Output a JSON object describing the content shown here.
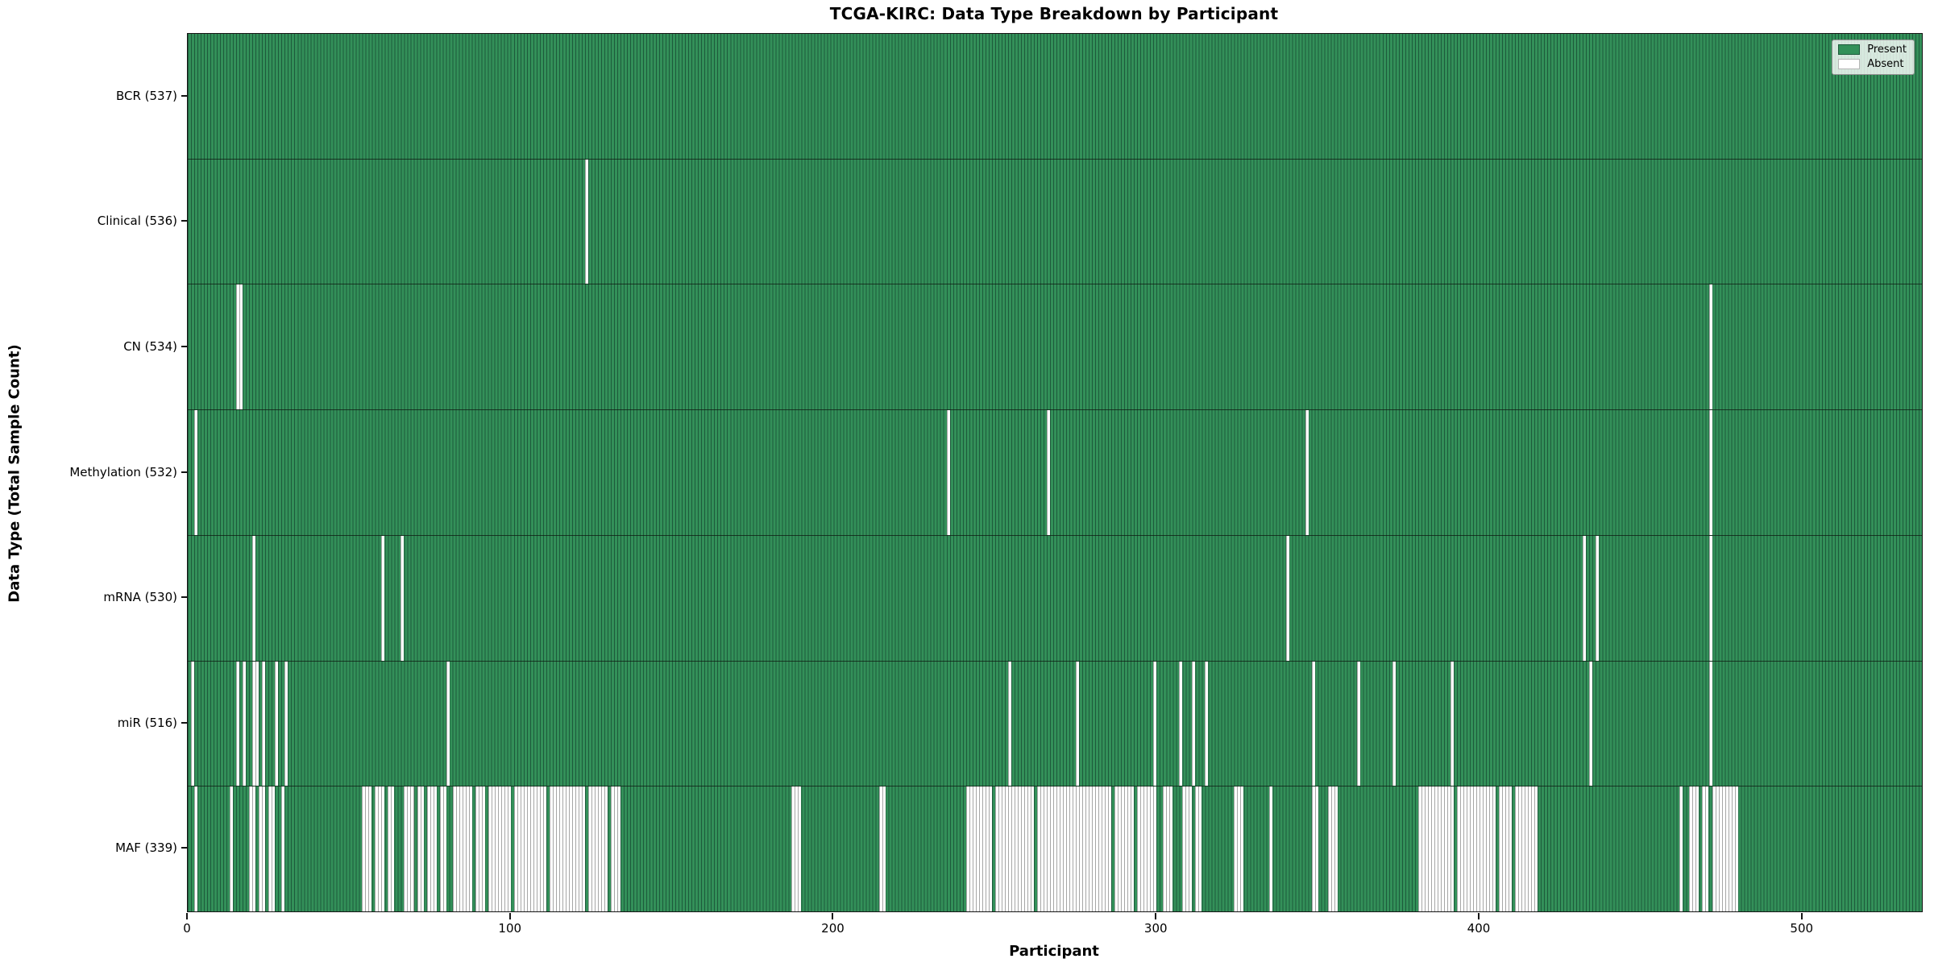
{
  "title": "TCGA-KIRC: Data Type Breakdown by Participant",
  "x_axis": {
    "label": "Participant",
    "ticks": [
      0,
      100,
      200,
      300,
      400,
      500
    ]
  },
  "y_axis": {
    "label": "Data Type (Total Sample Count)"
  },
  "legend": {
    "present_label": "Present",
    "absent_label": "Absent"
  },
  "colors": {
    "present_face": "#339059",
    "present_edge": "#1d5a3b",
    "absent_face": "#ffffff",
    "absent_edge": "#a6a6a6"
  },
  "chart_data": {
    "type": "heatmap",
    "subtype": "presence-absence-matrix",
    "x_range": [
      0,
      537
    ],
    "n_participants": 537,
    "legend_position": "upper right",
    "grid": false,
    "rows": [
      {
        "label": "BCR (537)",
        "data_type": "BCR",
        "present_count": 537,
        "absent_count": 0,
        "absent_ranges": []
      },
      {
        "label": "Clinical (536)",
        "data_type": "Clinical",
        "present_count": 536,
        "absent_count": 1,
        "absent_ranges": [
          [
            123,
            123
          ]
        ]
      },
      {
        "label": "CN (534)",
        "data_type": "CN",
        "present_count": 534,
        "absent_count": 3,
        "absent_ranges": [
          [
            15,
            16
          ],
          [
            471,
            471
          ]
        ]
      },
      {
        "label": "Methylation (532)",
        "data_type": "Methylation",
        "present_count": 532,
        "absent_count": 5,
        "absent_ranges": [
          [
            2,
            2
          ],
          [
            235,
            235
          ],
          [
            266,
            266
          ],
          [
            346,
            346
          ],
          [
            471,
            471
          ]
        ]
      },
      {
        "label": "mRNA (530)",
        "data_type": "mRNA",
        "present_count": 530,
        "absent_count": 7,
        "absent_ranges": [
          [
            20,
            20
          ],
          [
            60,
            60
          ],
          [
            66,
            66
          ],
          [
            340,
            340
          ],
          [
            432,
            432
          ],
          [
            436,
            436
          ],
          [
            471,
            471
          ]
        ]
      },
      {
        "label": "miR (516)",
        "data_type": "miR",
        "present_count": 516,
        "absent_count": 21,
        "absent_ranges": [
          [
            1,
            1
          ],
          [
            15,
            15
          ],
          [
            17,
            17
          ],
          [
            20,
            21
          ],
          [
            23,
            23
          ],
          [
            27,
            27
          ],
          [
            30,
            30
          ],
          [
            80,
            80
          ],
          [
            254,
            254
          ],
          [
            275,
            275
          ],
          [
            299,
            299
          ],
          [
            307,
            307
          ],
          [
            311,
            311
          ],
          [
            315,
            315
          ],
          [
            348,
            348
          ],
          [
            362,
            362
          ],
          [
            373,
            373
          ],
          [
            391,
            391
          ],
          [
            434,
            434
          ],
          [
            471,
            471
          ]
        ]
      },
      {
        "label": "MAF (339)",
        "data_type": "MAF",
        "present_count": 339,
        "absent_count": 198,
        "absent_ranges": [
          [
            2,
            2
          ],
          [
            13,
            13
          ],
          [
            19,
            20
          ],
          [
            22,
            23
          ],
          [
            25,
            26
          ],
          [
            29,
            29
          ],
          [
            54,
            56
          ],
          [
            58,
            60
          ],
          [
            62,
            63
          ],
          [
            67,
            69
          ],
          [
            71,
            72
          ],
          [
            74,
            76
          ],
          [
            78,
            79
          ],
          [
            82,
            87
          ],
          [
            89,
            91
          ],
          [
            93,
            99
          ],
          [
            101,
            110
          ],
          [
            112,
            122
          ],
          [
            124,
            129
          ],
          [
            131,
            133
          ],
          [
            187,
            189
          ],
          [
            214,
            215
          ],
          [
            241,
            248
          ],
          [
            250,
            261
          ],
          [
            263,
            270
          ],
          [
            271,
            285
          ],
          [
            287,
            292
          ],
          [
            294,
            299
          ],
          [
            302,
            304
          ],
          [
            308,
            310
          ],
          [
            312,
            313
          ],
          [
            324,
            326
          ],
          [
            335,
            335
          ],
          [
            348,
            349
          ],
          [
            353,
            355
          ],
          [
            381,
            391
          ],
          [
            393,
            404
          ],
          [
            406,
            409
          ],
          [
            411,
            417
          ],
          [
            462,
            462
          ],
          [
            465,
            467
          ],
          [
            469,
            470
          ],
          [
            472,
            479
          ]
        ]
      }
    ]
  }
}
